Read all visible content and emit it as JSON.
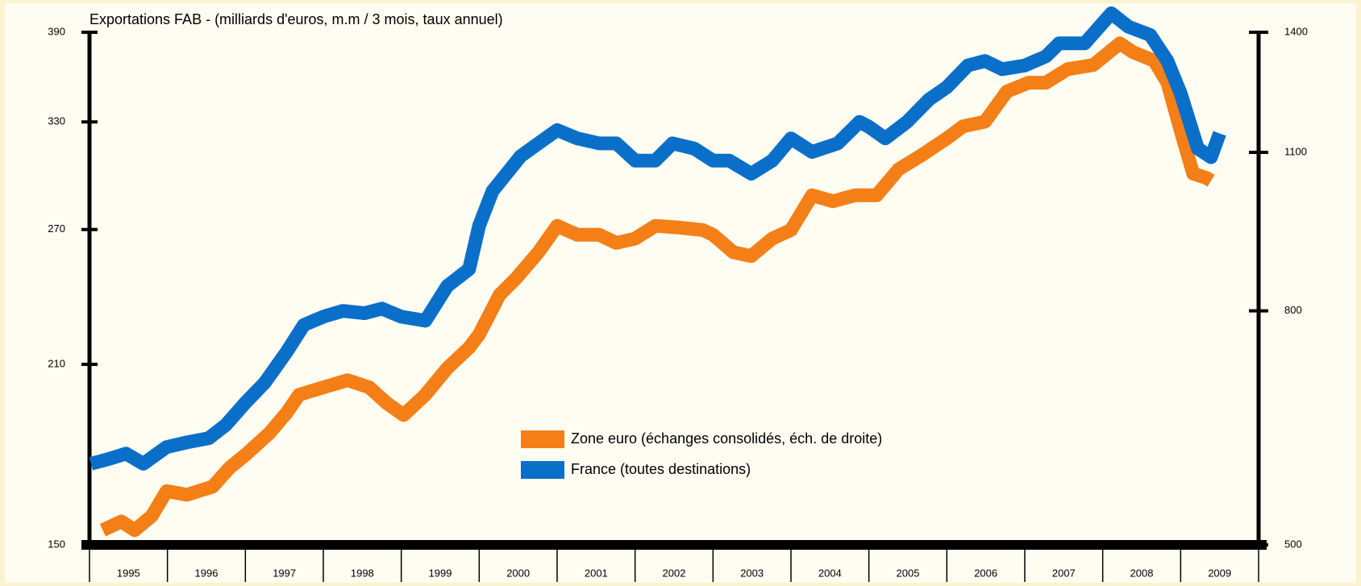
{
  "chart_data": {
    "type": "line",
    "title": "Exportations FAB - (milliards d'euros, m.m / 3 mois, taux annuel)",
    "categories": [
      "1995",
      "1996",
      "1997",
      "1998",
      "1999",
      "2000",
      "2001",
      "2002",
      "2003",
      "2004",
      "2005",
      "2006",
      "2007",
      "2008",
      "2009"
    ],
    "xlim": [
      1995,
      2010
    ],
    "ylim": [
      150,
      390
    ],
    "yticks": [
      150,
      210,
      270,
      330,
      390
    ],
    "ylog": true,
    "y2lim": [
      500,
      1400
    ],
    "y2ticks": [
      500,
      800,
      1100,
      1400
    ],
    "y2log": true,
    "legend": "center",
    "series": [
      {
        "name": "Zone euro (échanges consolidés, éch. de droite)",
        "color": "#f47f17",
        "axis": "y2",
        "x": [
          1995.17,
          1995.41,
          1995.58,
          1995.8,
          1995.99,
          1996.25,
          1996.58,
          1996.8,
          1997.0,
          1997.31,
          1997.53,
          1997.69,
          1998.0,
          1998.31,
          1998.59,
          1998.81,
          1999.03,
          1999.31,
          1999.59,
          1999.87,
          2000.0,
          2000.26,
          2000.48,
          2000.76,
          2001.0,
          2001.26,
          2001.54,
          2001.76,
          2002.0,
          2002.26,
          2002.54,
          2002.87,
          2003.0,
          2003.26,
          2003.49,
          2003.76,
          2004.0,
          2004.27,
          2004.54,
          2004.82,
          2005.1,
          2005.38,
          2005.66,
          2005.99,
          2006.21,
          2006.49,
          2006.77,
          2007.05,
          2007.27,
          2007.55,
          2007.88,
          2008.22,
          2008.39,
          2008.66,
          2008.83,
          2009.0,
          2009.16,
          2009.33,
          2009.39
        ],
        "values": [
          515,
          524,
          515,
          530,
          557,
          553,
          562,
          584,
          599,
          626,
          652,
          676,
          686,
          696,
          686,
          665,
          649,
          676,
          713,
          743,
          763,
          826,
          855,
          900,
          949,
          932,
          932,
          917,
          925,
          949,
          946,
          941,
          932,
          900,
          893,
          925,
          941,
          1009,
          997,
          1009,
          1009,
          1063,
          1092,
          1130,
          1159,
          1170,
          1243,
          1265,
          1265,
          1300,
          1311,
          1369,
          1345,
          1322,
          1265,
          1149,
          1054,
          1045,
          1039
        ]
      },
      {
        "name": "France (toutes destinations)",
        "color": "#0a6fc8",
        "axis": "y",
        "x": [
          1995.02,
          1995.24,
          1995.47,
          1995.69,
          1995.99,
          1996.25,
          1996.53,
          1996.75,
          1997.0,
          1997.25,
          1997.53,
          1997.75,
          1998.0,
          1998.25,
          1998.53,
          1998.75,
          1999.0,
          1999.31,
          1999.59,
          1999.87,
          2000.0,
          2000.17,
          2000.53,
          2000.76,
          2001.0,
          2001.26,
          2001.54,
          2001.76,
          2002.0,
          2002.26,
          2002.48,
          2002.76,
          2003.0,
          2003.21,
          2003.49,
          2003.76,
          2004.0,
          2004.27,
          2004.6,
          2004.88,
          2005.0,
          2005.21,
          2005.49,
          2005.77,
          2006.0,
          2006.27,
          2006.49,
          2006.71,
          2007.0,
          2007.27,
          2007.44,
          2007.77,
          2008.11,
          2008.33,
          2008.61,
          2008.83,
          2009.0,
          2009.22,
          2009.39,
          2009.5
        ],
        "values": [
          174.5,
          176,
          177.8,
          174.5,
          180,
          181.6,
          183,
          187.6,
          195.5,
          203,
          215,
          226,
          229.5,
          232,
          231,
          233,
          229.5,
          227.8,
          243,
          250.8,
          272,
          290,
          309.5,
          317,
          325,
          320,
          317,
          317,
          307,
          307,
          317,
          314,
          307,
          307,
          299.6,
          307,
          320,
          312,
          317,
          330,
          327,
          320,
          330,
          344,
          352,
          366.6,
          369.7,
          364,
          366.6,
          372.8,
          382,
          382,
          404,
          394,
          388,
          369.7,
          348,
          314,
          309,
          323
        ]
      }
    ]
  }
}
